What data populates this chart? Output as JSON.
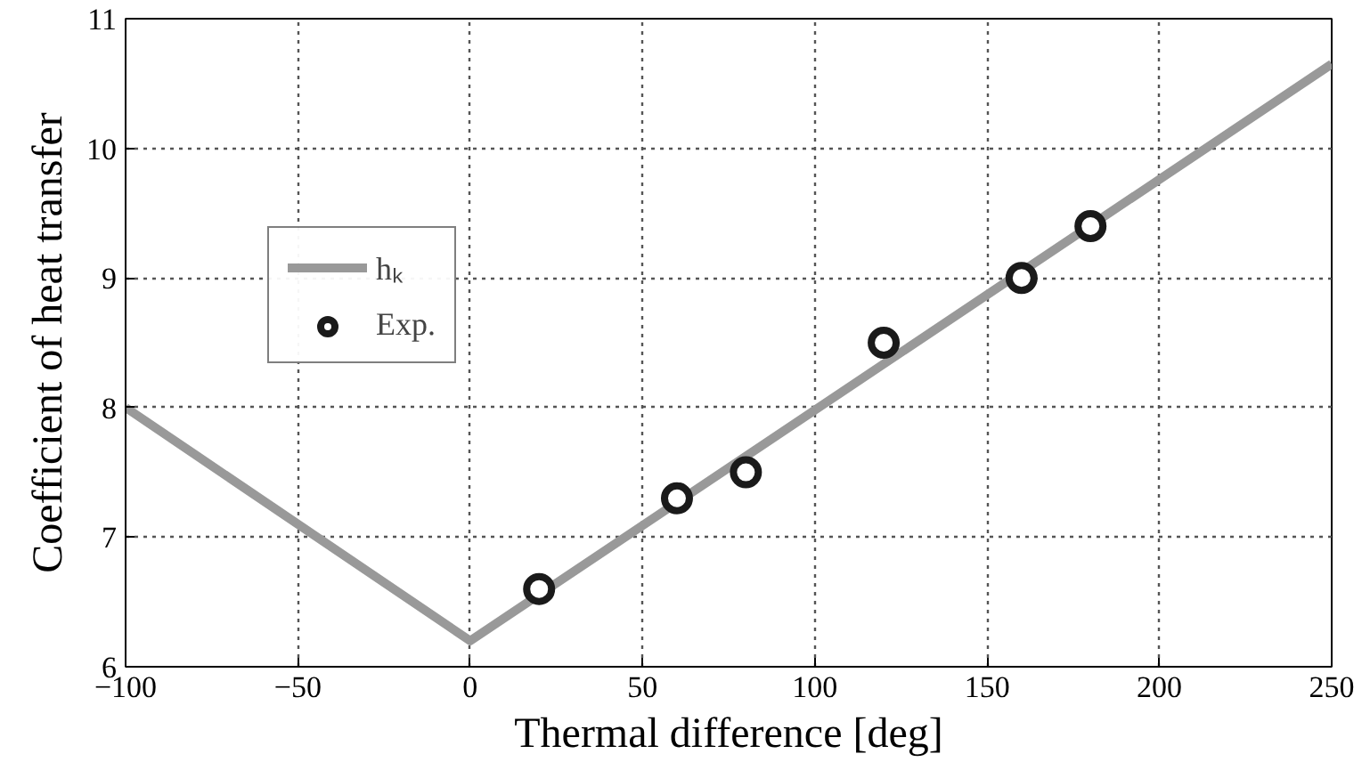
{
  "chart_data": {
    "type": "line",
    "xlabel": "Thermal difference [deg]",
    "ylabel": "Coefficient of heat transfer",
    "series": [
      {
        "name": "hₖ",
        "color": "#999999",
        "x": [
          -100,
          0,
          250
        ],
        "values": [
          8.0,
          6.2,
          10.65
        ]
      },
      {
        "name": "Exp.",
        "type": "scatter",
        "marker": "circle",
        "color": "#1a1a1a",
        "x": [
          20,
          60,
          80,
          120,
          160,
          180
        ],
        "values": [
          6.6,
          7.3,
          7.5,
          8.5,
          9.0,
          9.4
        ]
      }
    ],
    "xlim": [
      -100,
      250
    ],
    "xticks": [
      -100,
      -50,
      0,
      50,
      100,
      150,
      200,
      250
    ],
    "ylim": [
      6,
      11
    ],
    "yticks": [
      6,
      7,
      8,
      9,
      10,
      11
    ],
    "grid": true,
    "legend": "top left"
  }
}
